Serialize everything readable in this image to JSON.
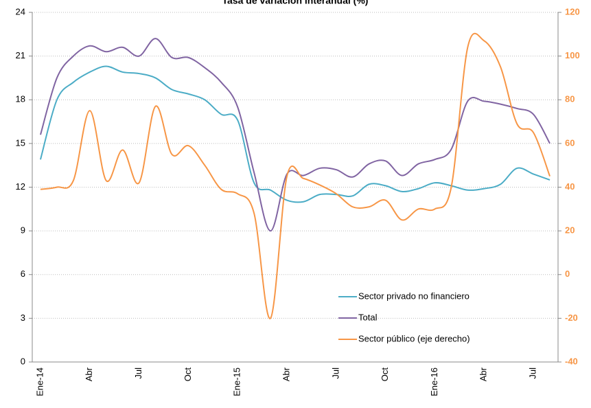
{
  "chart_data": {
    "type": "line",
    "title": "Tasa de variación interanual (%)",
    "categories": [
      "Ene-14",
      null,
      null,
      "Abr",
      null,
      null,
      "Jul",
      null,
      null,
      "Oct",
      null,
      null,
      "Ene-15",
      null,
      null,
      "Abr",
      null,
      null,
      "Jul",
      null,
      null,
      "Oct",
      null,
      null,
      "Ene-16",
      null,
      null,
      "Abr",
      null,
      null,
      "Jul",
      null
    ],
    "series": [
      {
        "name": "Sector privado no financiero",
        "color": "#4bacc6",
        "values": [
          13.9,
          18.0,
          19.2,
          19.9,
          20.3,
          19.9,
          19.8,
          19.5,
          18.7,
          18.4,
          18.0,
          17.0,
          16.6,
          12.3,
          11.8,
          11.1,
          11.0,
          11.5,
          11.5,
          11.4,
          12.2,
          12.1,
          11.7,
          11.9,
          12.3,
          12.1,
          11.8,
          11.9,
          12.2,
          13.3,
          12.9,
          12.5
        ]
      },
      {
        "name": "Total",
        "color": "#8064a2",
        "values": [
          15.6,
          19.5,
          21.0,
          21.7,
          21.3,
          21.6,
          21.0,
          22.2,
          20.9,
          20.9,
          20.2,
          19.2,
          17.5,
          13.0,
          9.0,
          12.9,
          12.8,
          13.3,
          13.2,
          12.7,
          13.6,
          13.8,
          12.8,
          13.6,
          13.9,
          14.6,
          17.9,
          17.9,
          17.7,
          17.4,
          17.0,
          15.0
        ]
      },
      {
        "name": "Sector público (eje derecho)",
        "color": "#f79646",
        "axis": "y2",
        "values": [
          39,
          40,
          43,
          75,
          43,
          57,
          42,
          77,
          55,
          59,
          50,
          39,
          37,
          28,
          -20,
          45,
          44,
          41,
          37,
          31,
          31,
          34,
          25,
          30,
          30,
          40,
          104,
          107,
          95,
          69,
          65,
          45
        ]
      }
    ],
    "ylim": [
      0,
      24
    ],
    "yticks": [
      0,
      3,
      6,
      9,
      12,
      15,
      18,
      21,
      24
    ],
    "y2lim": [
      -40,
      120
    ],
    "y2ticks": [
      -40,
      -20,
      0,
      20,
      40,
      60,
      80,
      100,
      120
    ],
    "grid": true
  }
}
